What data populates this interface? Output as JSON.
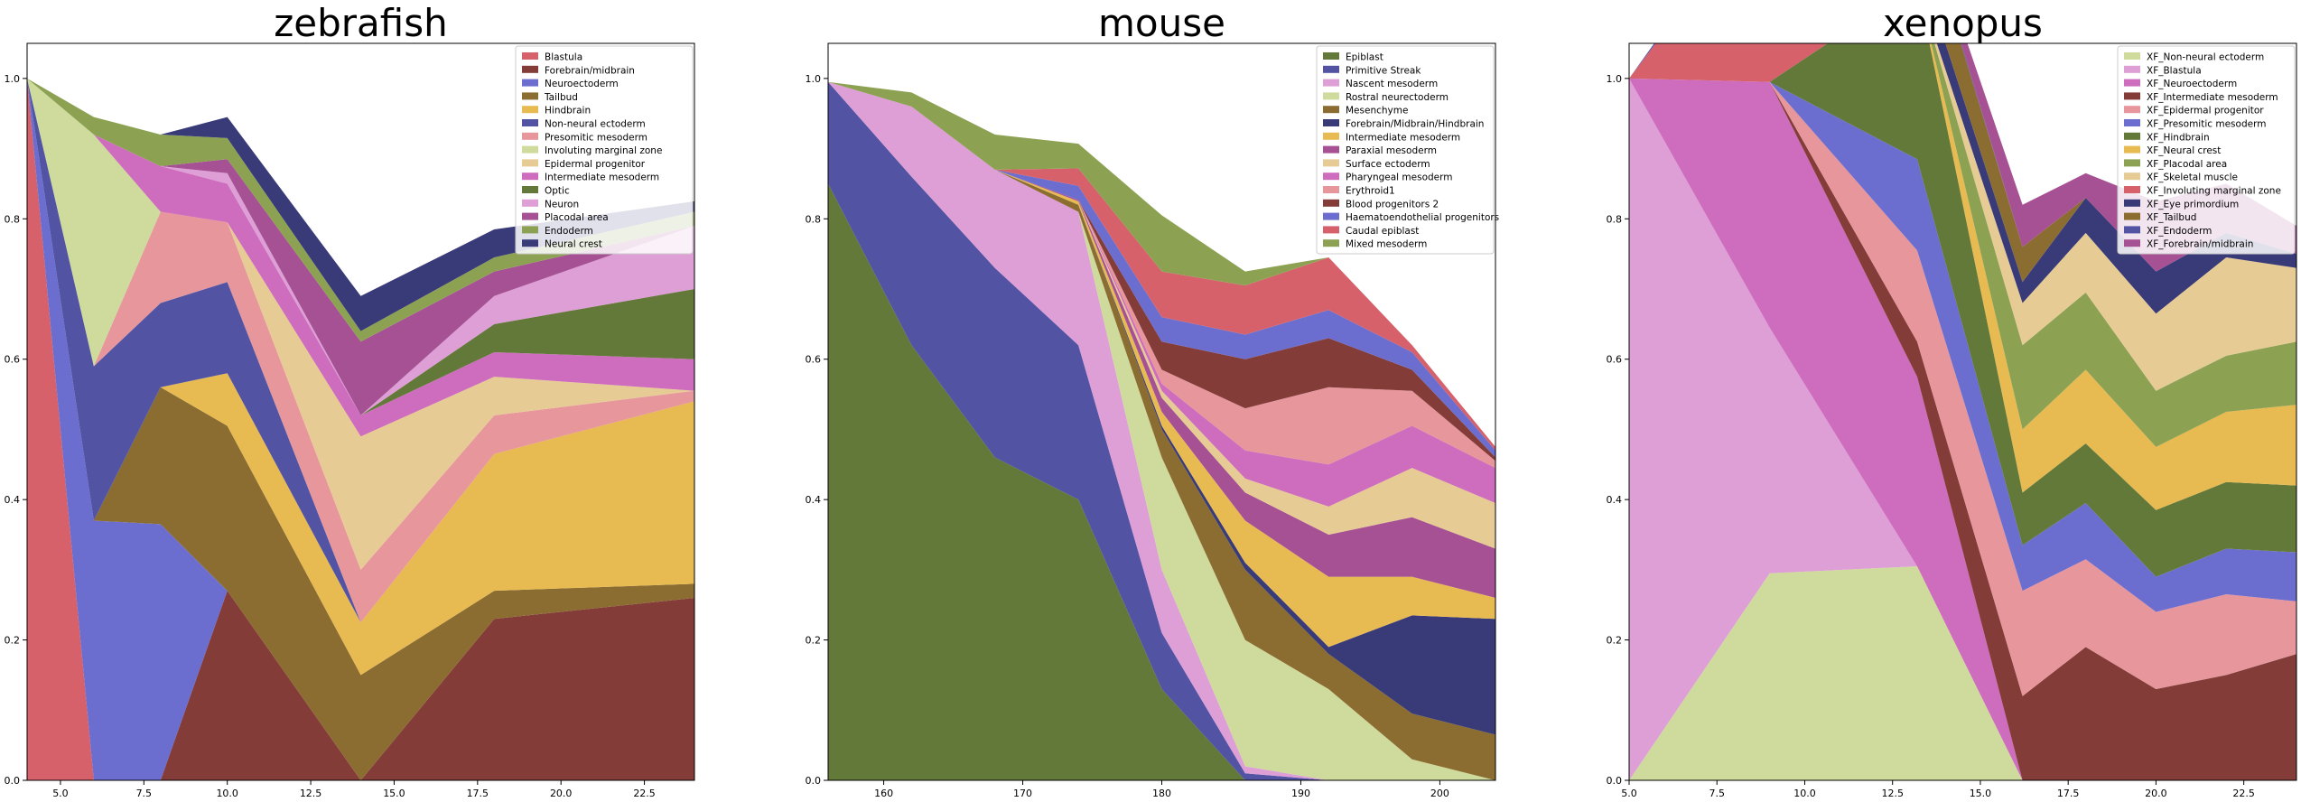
{
  "figure": {
    "panels": [
      "zebrafish",
      "mouse",
      "xenopus"
    ]
  },
  "chart_data": [
    {
      "type": "area",
      "title": "zebrafish",
      "xlabel": "",
      "ylabel": "",
      "xlim": [
        4,
        24
      ],
      "ylim": [
        0,
        1.05
      ],
      "xticks": [
        5,
        7.5,
        10,
        12.5,
        15,
        17.5,
        20,
        22.5
      ],
      "xtick_labels": [
        "5.0",
        "7.5",
        "10.0",
        "12.5",
        "15.0",
        "17.5",
        "20.0",
        "22.5"
      ],
      "yticks": [
        0,
        0.2,
        0.4,
        0.6,
        0.8,
        1.0
      ],
      "ytick_labels": [
        "0.0",
        "0.2",
        "0.4",
        "0.6",
        "0.8",
        "1.0"
      ],
      "legend_position": "top-right",
      "x": [
        4,
        6,
        8,
        10,
        14,
        18,
        24
      ],
      "series": [
        {
          "name": "Blastula",
          "color": "#d6616b",
          "values": [
            1.0,
            0,
            0,
            0,
            0,
            0,
            0
          ]
        },
        {
          "name": "Forebrain/midbrain",
          "color": "#843c39",
          "values": [
            0,
            0,
            0,
            0.27,
            0,
            0.23,
            0.26
          ]
        },
        {
          "name": "Neuroectoderm",
          "color": "#6b6ecf",
          "values": [
            0,
            0.37,
            0.365,
            0,
            0,
            0,
            0
          ]
        },
        {
          "name": "Tailbud",
          "color": "#8c6d31",
          "values": [
            0,
            0,
            0.195,
            0.235,
            0.15,
            0.04,
            0.02
          ]
        },
        {
          "name": "Hindbrain",
          "color": "#e7ba52",
          "values": [
            0,
            0,
            0,
            0.075,
            0.075,
            0.195,
            0.26
          ]
        },
        {
          "name": "Non-neural ectoderm",
          "color": "#5254a3",
          "values": [
            0,
            0.22,
            0.12,
            0.13,
            0,
            0,
            0
          ]
        },
        {
          "name": "Presomitic mesoderm",
          "color": "#e7969c",
          "values": [
            0,
            0,
            0.13,
            0.085,
            0.075,
            0.055,
            0.015
          ]
        },
        {
          "name": "Involuting marginal zone",
          "color": "#cedb9c",
          "values": [
            0,
            0.33,
            0,
            0,
            0,
            0,
            0
          ]
        },
        {
          "name": "Epidermal progenitor",
          "color": "#e7cb94",
          "values": [
            0,
            0,
            0,
            0,
            0.19,
            0.055,
            0
          ]
        },
        {
          "name": "Intermediate mesoderm",
          "color": "#ce6dbd",
          "values": [
            0,
            0,
            0.065,
            0.055,
            0.03,
            0.035,
            0.045
          ]
        },
        {
          "name": "Optic",
          "color": "#637939",
          "values": [
            0,
            0,
            0,
            0,
            0,
            0.04,
            0.1
          ]
        },
        {
          "name": "Neuron",
          "color": "#de9ed6",
          "values": [
            0,
            0,
            0,
            0.015,
            0,
            0.04,
            0.09
          ]
        },
        {
          "name": "Placodal area",
          "color": "#a55194",
          "values": [
            0,
            0,
            0,
            0.02,
            0.105,
            0.035,
            0
          ]
        },
        {
          "name": "Endoderm",
          "color": "#8ca252",
          "values": [
            0,
            0.025,
            0.045,
            0.03,
            0.015,
            0.02,
            0.02
          ]
        },
        {
          "name": "Neural crest",
          "color": "#393b79",
          "values": [
            0,
            0,
            0,
            0.03,
            0.05,
            0.04,
            0.015
          ]
        }
      ]
    },
    {
      "type": "area",
      "title": "mouse",
      "xlabel": "",
      "ylabel": "",
      "xlim": [
        156,
        204
      ],
      "ylim": [
        0,
        1.05
      ],
      "xticks": [
        160,
        170,
        180,
        190,
        200
      ],
      "xtick_labels": [
        "160",
        "170",
        "180",
        "190",
        "200"
      ],
      "yticks": [
        0,
        0.2,
        0.4,
        0.6,
        0.8,
        1.0
      ],
      "ytick_labels": [
        "0.0",
        "0.2",
        "0.4",
        "0.6",
        "0.8",
        "1.0"
      ],
      "legend_position": "top-right",
      "x": [
        156,
        162,
        168,
        174,
        180,
        186,
        192,
        198,
        204
      ],
      "series": [
        {
          "name": "Epiblast",
          "color": "#637939",
          "values": [
            0.85,
            0.62,
            0.46,
            0.4,
            0.13,
            0,
            0,
            0,
            0
          ]
        },
        {
          "name": "Primitive Streak",
          "color": "#5254a3",
          "values": [
            0.145,
            0.24,
            0.27,
            0.22,
            0.08,
            0.01,
            0,
            0,
            0
          ]
        },
        {
          "name": "Nascent mesoderm",
          "color": "#de9ed6",
          "values": [
            0,
            0.1,
            0.14,
            0.19,
            0.09,
            0.01,
            0,
            0,
            0
          ]
        },
        {
          "name": "Rostral neurectoderm",
          "color": "#cedb9c",
          "values": [
            0,
            0,
            0,
            0,
            0.16,
            0.18,
            0.13,
            0.03,
            0
          ]
        },
        {
          "name": "Mesenchyme",
          "color": "#8c6d31",
          "values": [
            0,
            0,
            0,
            0.01,
            0.04,
            0.1,
            0.05,
            0.065,
            0.065
          ]
        },
        {
          "name": "Forebrain/Midbrain/Hindbrain",
          "color": "#393b79",
          "values": [
            0,
            0,
            0,
            0,
            0.005,
            0.01,
            0.01,
            0.14,
            0.165
          ]
        },
        {
          "name": "Intermediate mesoderm",
          "color": "#e7ba52",
          "values": [
            0,
            0,
            0,
            0.005,
            0.02,
            0.06,
            0.1,
            0.055,
            0.03
          ]
        },
        {
          "name": "Paraxial mesoderm",
          "color": "#a55194",
          "values": [
            0,
            0,
            0,
            0.002,
            0.02,
            0.04,
            0.06,
            0.085,
            0.07
          ]
        },
        {
          "name": "Surface ectoderm",
          "color": "#e7cb94",
          "values": [
            0,
            0,
            0,
            0,
            0.01,
            0.02,
            0.04,
            0.07,
            0.065
          ]
        },
        {
          "name": "Pharyngeal mesoderm",
          "color": "#ce6dbd",
          "values": [
            0,
            0,
            0,
            0,
            0.01,
            0.04,
            0.06,
            0.06,
            0.05
          ]
        },
        {
          "name": "Erythroid1",
          "color": "#e7969c",
          "values": [
            0,
            0,
            0,
            0,
            0.02,
            0.06,
            0.11,
            0.05,
            0.01
          ]
        },
        {
          "name": "Blood progenitors 2",
          "color": "#843c39",
          "values": [
            0,
            0,
            0,
            0,
            0.04,
            0.07,
            0.07,
            0.03,
            0.005
          ]
        },
        {
          "name": "Haematoendothelial progenitors",
          "color": "#6b6ecf",
          "values": [
            0,
            0,
            0,
            0.02,
            0.035,
            0.035,
            0.04,
            0.025,
            0.01
          ]
        },
        {
          "name": "Caudal epiblast",
          "color": "#d6616b",
          "values": [
            0,
            0,
            0,
            0.025,
            0.065,
            0.07,
            0.075,
            0.01,
            0.005
          ]
        },
        {
          "name": "Mixed mesoderm",
          "color": "#8ca252",
          "values": [
            0,
            0.02,
            0.05,
            0.035,
            0.08,
            0.02,
            0.0,
            0,
            0
          ]
        }
      ]
    },
    {
      "type": "area",
      "title": "xenopus",
      "xlabel": "",
      "ylabel": "",
      "xlim": [
        5,
        24
      ],
      "ylim": [
        0,
        1.05
      ],
      "xticks": [
        5,
        7.5,
        10,
        12.5,
        15,
        17.5,
        20,
        22.5
      ],
      "xtick_labels": [
        "5.0",
        "7.5",
        "10.0",
        "12.5",
        "15.0",
        "17.5",
        "20.0",
        "22.5"
      ],
      "yticks": [
        0,
        0.2,
        0.4,
        0.6,
        0.8,
        1.0
      ],
      "ytick_labels": [
        "0.0",
        "0.2",
        "0.4",
        "0.6",
        "0.8",
        "1.0"
      ],
      "legend_position": "top-right",
      "x": [
        5,
        9,
        13.2,
        16.2,
        18,
        20,
        22,
        24
      ],
      "series": [
        {
          "name": "XF_Non-neural ectoderm",
          "color": "#cedb9c",
          "values": [
            0,
            0.295,
            0.305,
            0,
            0,
            0,
            0,
            0
          ]
        },
        {
          "name": "XF_Blastula",
          "color": "#de9ed6",
          "values": [
            1.0,
            0.35,
            0,
            0,
            0,
            0,
            0,
            0
          ]
        },
        {
          "name": "XF_Neuroectoderm",
          "color": "#ce6dbd",
          "values": [
            0,
            0.35,
            0.27,
            0,
            0,
            0,
            0,
            0
          ]
        },
        {
          "name": "XF_Intermediate mesoderm",
          "color": "#843c39",
          "values": [
            0,
            0,
            0.05,
            0.12,
            0.19,
            0.13,
            0.15,
            0.18
          ]
        },
        {
          "name": "XF_Epidermal progenitor",
          "color": "#e7969c",
          "values": [
            0,
            0,
            0.13,
            0.15,
            0.125,
            0.11,
            0.115,
            0.075
          ]
        },
        {
          "name": "XF_Presomitic mesoderm",
          "color": "#6b6ecf",
          "values": [
            0,
            0,
            0.13,
            0.065,
            0.08,
            0.05,
            0.065,
            0.07
          ]
        },
        {
          "name": "XF_Hindbrain",
          "color": "#637939",
          "values": [
            0,
            0,
            0.25,
            0.075,
            0.085,
            0.095,
            0.095,
            0.095
          ]
        },
        {
          "name": "XF_Neural crest",
          "color": "#e7ba52",
          "values": [
            0,
            0,
            0,
            0.09,
            0.105,
            0.09,
            0.1,
            0.115
          ]
        },
        {
          "name": "XF_Placodal area",
          "color": "#8ca252",
          "values": [
            0,
            0,
            0,
            0.12,
            0.11,
            0.08,
            0.08,
            0.09
          ]
        },
        {
          "name": "XF_Skeletal muscle",
          "color": "#e7cb94",
          "values": [
            0,
            0,
            0,
            0.06,
            0.085,
            0.11,
            0.14,
            0.105
          ]
        },
        {
          "name": "XF_Involuting marginal zone",
          "color": "#d6616b",
          "values": [
            0,
            0.27,
            0.0,
            0,
            0,
            0,
            0,
            0
          ]
        },
        {
          "name": "XF_Eye primordium",
          "color": "#393b79",
          "values": [
            0,
            0,
            0.04,
            0.03,
            0.05,
            0.06,
            0.035,
            0.02
          ]
        },
        {
          "name": "XF_Tailbud",
          "color": "#8c6d31",
          "values": [
            0,
            0,
            0.08,
            0.05,
            0,
            0,
            0,
            0
          ]
        },
        {
          "name": "XF_Endoderm",
          "color": "#5254a3",
          "values": [
            0,
            0.015,
            0.005,
            0,
            0,
            0,
            0,
            0
          ]
        },
        {
          "name": "XF_Forebrain/midbrain",
          "color": "#a55194",
          "values": [
            0,
            0,
            0,
            0.06,
            0.035,
            0.1,
            0.07,
            0.04
          ]
        }
      ]
    }
  ]
}
